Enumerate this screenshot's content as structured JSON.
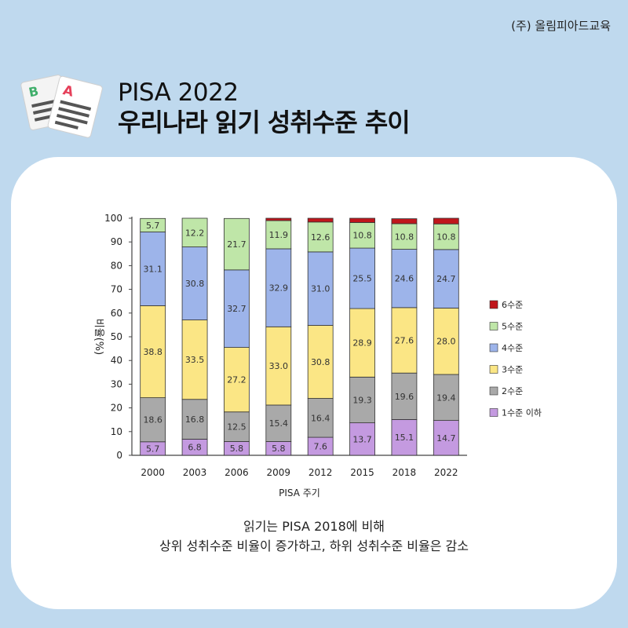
{
  "brand": "(주) 올림피아드교육",
  "header": {
    "title_line1": "PISA 2022",
    "title_line2": "우리나라 읽기 성취수준 추이"
  },
  "caption": {
    "line1": "읽기는 PISA 2018에 비해",
    "line2": "상위 성취수준 비율이 증가하고, 하위 성취수준 비율은 감소"
  },
  "chart_data": {
    "type": "bar",
    "stacked": true,
    "xlabel": "PISA 주기",
    "ylabel": "비율(%)",
    "ylim": [
      0,
      100
    ],
    "yticks": [
      0,
      10,
      20,
      30,
      40,
      50,
      60,
      70,
      80,
      90,
      100
    ],
    "categories": [
      "2000",
      "2003",
      "2006",
      "2009",
      "2012",
      "2015",
      "2018",
      "2022"
    ],
    "series": [
      {
        "name": "1수준 이하",
        "color": "#c49ae0",
        "values": [
          5.7,
          6.8,
          5.8,
          5.8,
          7.6,
          13.7,
          15.1,
          14.7
        ],
        "labels": [
          "5.7",
          "6.8",
          "5.8",
          "5.8",
          "7.6",
          "13.7",
          "15.1",
          "14.7"
        ]
      },
      {
        "name": "2수준",
        "color": "#a9a9a9",
        "values": [
          18.6,
          16.8,
          12.5,
          15.4,
          16.4,
          19.3,
          19.6,
          19.4
        ],
        "labels": [
          "18.6",
          "16.8",
          "12.5",
          "15.4",
          "16.4",
          "19.3",
          "19.6",
          "19.4"
        ]
      },
      {
        "name": "3수준",
        "color": "#fbe685",
        "values": [
          38.8,
          33.5,
          27.2,
          33.0,
          30.8,
          28.9,
          27.6,
          28.0
        ],
        "labels": [
          "38.8",
          "33.5",
          "27.2",
          "33.0",
          "30.8",
          "28.9",
          "27.6",
          "28.0"
        ]
      },
      {
        "name": "4수준",
        "color": "#9db4ea",
        "values": [
          31.1,
          30.8,
          32.7,
          32.9,
          31.0,
          25.5,
          24.6,
          24.7
        ],
        "labels": [
          "31.1",
          "30.8",
          "32.7",
          "32.9",
          "31.0",
          "25.5",
          "24.6",
          "24.7"
        ]
      },
      {
        "name": "5수준",
        "color": "#bfe6a8",
        "values": [
          5.7,
          12.2,
          21.7,
          11.9,
          12.6,
          10.8,
          10.8,
          10.8
        ],
        "labels": [
          "5.7",
          "12.2",
          "21.7",
          "11.9",
          "12.6",
          "10.8",
          "10.8",
          "10.8"
        ]
      },
      {
        "name": "6수준",
        "color": "#c0161c",
        "values": [
          0,
          0,
          0,
          1.0,
          1.6,
          1.8,
          2.1,
          2.4
        ],
        "labels": [
          "",
          "",
          "",
          "",
          "",
          "",
          "",
          ""
        ]
      }
    ],
    "legend_placement": "right",
    "legend_order": [
      5,
      4,
      3,
      2,
      1,
      0
    ],
    "grid": false
  }
}
